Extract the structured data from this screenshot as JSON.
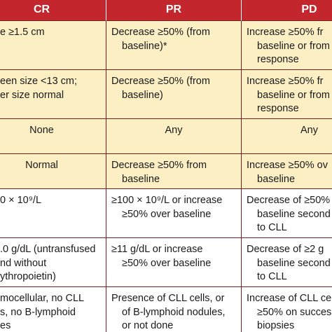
{
  "table": {
    "header": [
      "CR",
      "PR",
      "PD"
    ],
    "rows": [
      [
        [
          "e ≥1.5 cm"
        ],
        [
          "Decrease ≥50% (from",
          "baseline)*"
        ],
        [
          "Increase ≥50% fr",
          "baseline or from",
          "response"
        ]
      ],
      [
        [
          "een size <13 cm;",
          "er size normal"
        ],
        [
          "Decrease ≥50% (from",
          "baseline)"
        ],
        [
          "Increase ≥50% fr",
          "baseline or from",
          "response"
        ]
      ],
      [
        [
          "None"
        ],
        [
          "Any"
        ],
        [
          "Any"
        ]
      ],
      [
        [
          "Normal"
        ],
        [
          "Decrease ≥50% from",
          "baseline"
        ],
        [
          "Increase ≥50% ov",
          "baseline"
        ]
      ],
      [
        [
          "0 × 10⁹/L"
        ],
        [
          "≥100 × 10⁹/L or increase",
          "≥50% over baseline"
        ],
        [
          "Decrease of ≥50%",
          "baseline second",
          "to CLL"
        ]
      ],
      [
        [
          ".0 g/dL (untransfused",
          "nd without",
          "ythropoietin)"
        ],
        [
          "≥11 g/dL or increase",
          "≥50% over baseline"
        ],
        [
          "Decrease of ≥2 g",
          "baseline second",
          "to CLL"
        ]
      ],
      [
        [
          "mocellular, no CLL",
          "s, no B-lymphoid",
          "es"
        ],
        [
          "Presence of CLL cells, or",
          "of B-lymphoid nodules,",
          "or not done"
        ],
        [
          "Increase of CLL cel",
          "≥50% on succes",
          "biopsies"
        ]
      ]
    ]
  }
}
